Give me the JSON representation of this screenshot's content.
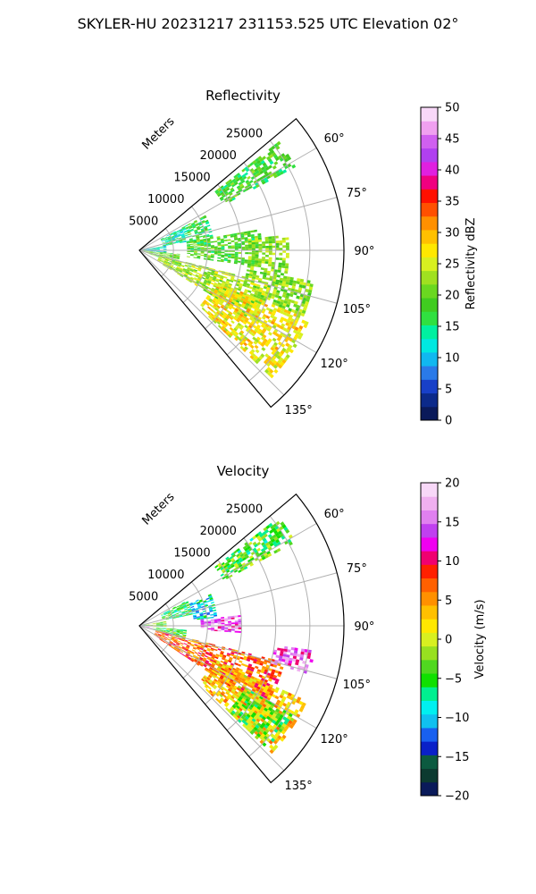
{
  "figure": {
    "suptitle": "SKYLER-HU  20231217  231153.525 UTC Elevation 02°"
  },
  "chart_data": [
    {
      "type": "heatmap",
      "title": "Reflectivity",
      "projection": "polar-sector",
      "range_label": "Meters",
      "range_ticks": [
        5000,
        10000,
        15000,
        20000,
        25000
      ],
      "range_tick_labels": [
        "5000",
        "10000",
        "15000",
        "20000",
        "25000"
      ],
      "range_max": 30000,
      "azimuth_range_deg": [
        50,
        140
      ],
      "azimuth_ticks_deg": [
        60,
        75,
        90,
        105,
        120,
        135
      ],
      "azimuth_tick_labels": [
        "60°",
        "75°",
        "90°",
        "105°",
        "120°",
        "135°"
      ],
      "grid": true,
      "colorbar": {
        "label": "Reflectivity dBZ",
        "min": 0,
        "max": 50,
        "ticks": [
          0,
          5,
          10,
          15,
          20,
          25,
          30,
          35,
          40,
          45,
          50
        ],
        "tick_labels": [
          "0",
          "5",
          "10",
          "15",
          "20",
          "25",
          "30",
          "35",
          "40",
          "45",
          "50"
        ],
        "colors": [
          "#0a1a5a",
          "#0c2a8a",
          "#1840c8",
          "#2a7ae8",
          "#10b8f0",
          "#00e8e0",
          "#00f0a0",
          "#30e040",
          "#40cc20",
          "#6ad820",
          "#a0e020",
          "#d8f020",
          "#ffe800",
          "#ffc000",
          "#ff9000",
          "#ff5000",
          "#ff1000",
          "#f00080",
          "#e020e0",
          "#b040f0",
          "#d060f0",
          "#f0a0f0",
          "#f8d8f8"
        ]
      },
      "echo_regions": [
        {
          "az": [
            52,
            62
          ],
          "r": [
            14000,
            26000
          ],
          "value": 18
        },
        {
          "az": [
            62,
            80
          ],
          "r": [
            3500,
            7500
          ],
          "value": 14
        },
        {
          "az": [
            62,
            85
          ],
          "r": [
            7500,
            11000
          ],
          "value": 17
        },
        {
          "az": [
            80,
            95
          ],
          "r": [
            500,
            4000
          ],
          "value": 12
        },
        {
          "az": [
            80,
            98
          ],
          "r": [
            7000,
            18000
          ],
          "value": 19
        },
        {
          "az": [
            95,
            110
          ],
          "r": [
            0,
            6000
          ],
          "value": 20
        },
        {
          "az": [
            104,
            122
          ],
          "r": [
            3000,
            20000
          ],
          "value": 23
        },
        {
          "az": [
            112,
            134
          ],
          "r": [
            12000,
            27000
          ],
          "value": 27
        },
        {
          "az": [
            84,
            104
          ],
          "r": [
            16000,
            22000
          ],
          "value": 22
        },
        {
          "az": [
            100,
            112
          ],
          "r": [
            20000,
            26000
          ],
          "value": 22
        }
      ]
    },
    {
      "type": "heatmap",
      "title": "Velocity",
      "projection": "polar-sector",
      "range_label": "Meters",
      "range_ticks": [
        5000,
        10000,
        15000,
        20000,
        25000
      ],
      "range_tick_labels": [
        "5000",
        "10000",
        "15000",
        "20000",
        "25000"
      ],
      "range_max": 30000,
      "azimuth_range_deg": [
        50,
        140
      ],
      "azimuth_ticks_deg": [
        60,
        75,
        90,
        105,
        120,
        135
      ],
      "azimuth_tick_labels": [
        "60°",
        "75°",
        "90°",
        "105°",
        "120°",
        "135°"
      ],
      "grid": true,
      "colorbar": {
        "label": "Velocity (m/s)",
        "min": -20,
        "max": 20,
        "ticks": [
          -20,
          -15,
          -10,
          -5,
          0,
          5,
          10,
          15,
          20
        ],
        "tick_labels": [
          "−20",
          "−15",
          "−10",
          "−5",
          "0",
          "5",
          "10",
          "15",
          "20"
        ],
        "colors": [
          "#0a1a5a",
          "#0c3a30",
          "#0c5a40",
          "#0a20c8",
          "#1860f0",
          "#10c0f0",
          "#00f0f0",
          "#00f090",
          "#10e000",
          "#50d820",
          "#98e020",
          "#d8f020",
          "#ffe800",
          "#ffc000",
          "#ff9000",
          "#ff6000",
          "#ff2000",
          "#f00070",
          "#f000f0",
          "#c040f0",
          "#e080f0",
          "#f0b0f0",
          "#f8d8f8"
        ]
      },
      "echo_regions": [
        {
          "az": [
            52,
            62
          ],
          "r": [
            14000,
            26000
          ],
          "value": -4
        },
        {
          "az": [
            62,
            78
          ],
          "r": [
            3500,
            8000
          ],
          "value": -5
        },
        {
          "az": [
            66,
            84
          ],
          "r": [
            8000,
            11500
          ],
          "value": -9
        },
        {
          "az": [
            80,
            92
          ],
          "r": [
            500,
            4000
          ],
          "value": -3
        },
        {
          "az": [
            84,
            94
          ],
          "r": [
            9000,
            15000
          ],
          "value": 14
        },
        {
          "az": [
            90,
            100
          ],
          "r": [
            0,
            2500
          ],
          "value": 15
        },
        {
          "az": [
            95,
            106
          ],
          "r": [
            2000,
            7000
          ],
          "value": -4
        },
        {
          "az": [
            104,
            124
          ],
          "r": [
            2500,
            22000
          ],
          "value": 7
        },
        {
          "az": [
            114,
            134
          ],
          "r": [
            12000,
            27000
          ],
          "value": 3
        },
        {
          "az": [
            98,
            106
          ],
          "r": [
            20000,
            26000
          ],
          "value": 14
        },
        {
          "az": [
            120,
            134
          ],
          "r": [
            18000,
            26000
          ],
          "value": -3
        }
      ]
    }
  ]
}
